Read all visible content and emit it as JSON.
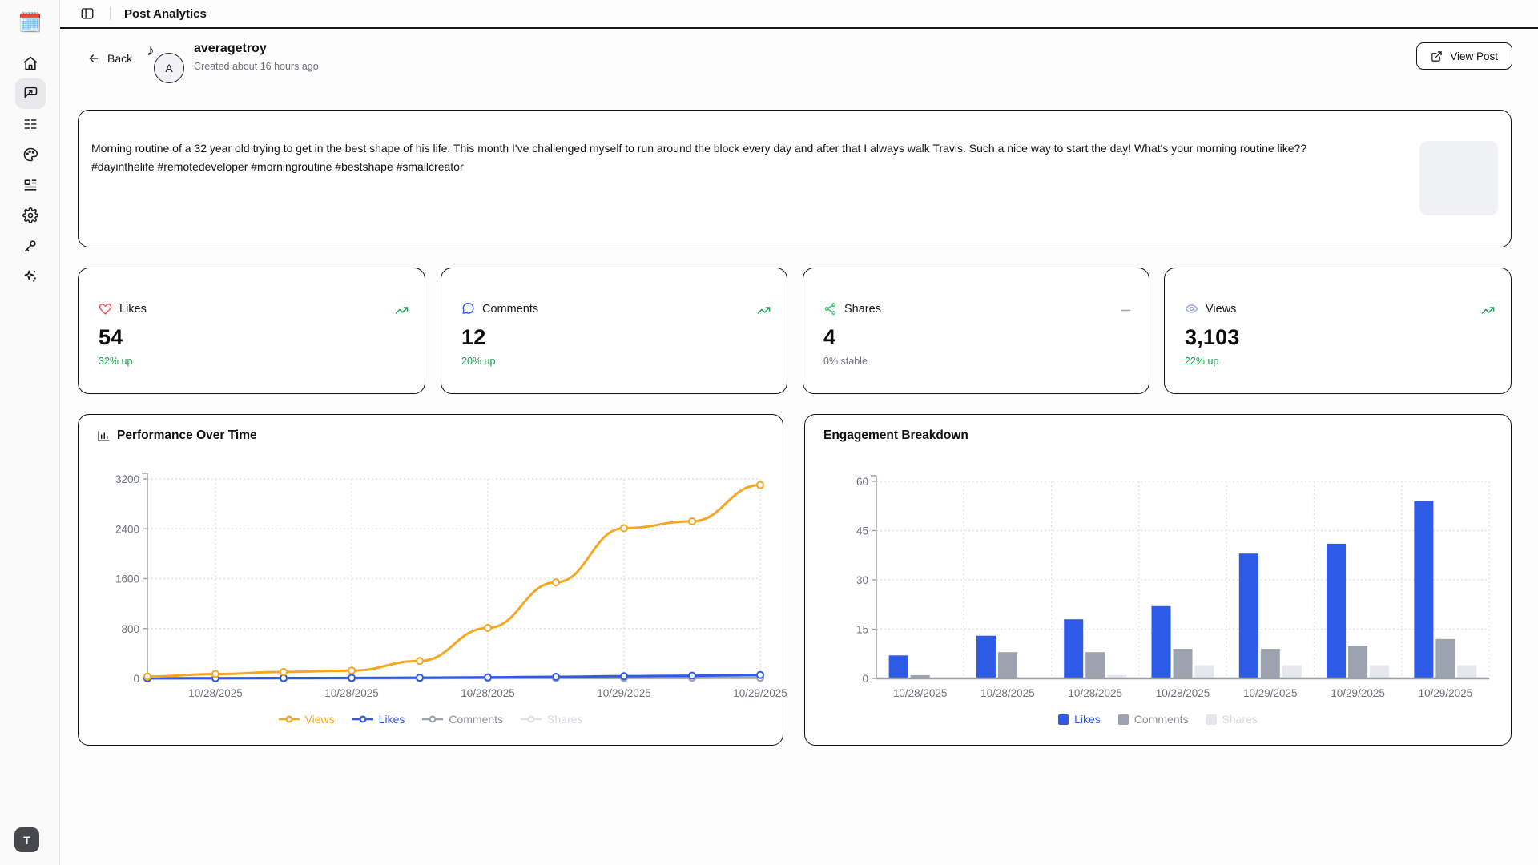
{
  "topbar": {
    "title": "Post Analytics",
    "toggle_icon": "panel-left-icon"
  },
  "sidebar": {
    "logo_icon": "calendar-emoji-logo",
    "logo": "🗓️",
    "items": [
      {
        "icon": "home-icon",
        "active": false
      },
      {
        "icon": "post-analytics-icon",
        "active": true
      },
      {
        "icon": "list-icon",
        "active": false
      },
      {
        "icon": "palette-icon",
        "active": false
      },
      {
        "icon": "layout-icon",
        "active": false
      },
      {
        "icon": "settings-gear-icon",
        "active": false
      },
      {
        "icon": "key-icon",
        "active": false
      },
      {
        "icon": "sparkles-icon",
        "active": false
      }
    ],
    "user_initial": "T"
  },
  "header": {
    "back_label": "Back",
    "avatar_initial": "A",
    "platform_badge": "tiktok-note-icon",
    "username": "averagetroy",
    "created": "Created about 16 hours ago",
    "view_post_label": "View Post"
  },
  "post": {
    "content": "Morning routine of a 32 year old trying to get in the best shape of his life. This month I've challenged myself to run around the block every day and after that I always walk Travis. Such a nice way to start the day! What's your morning routine like?? #dayinthelife #remotedeveloper #morningroutine #bestshape #smallcreator"
  },
  "stats": [
    {
      "label": "Likes",
      "value": "54",
      "change": "32% up",
      "trend": "up",
      "icon": "heart-icon",
      "icon_color": "#ef4444",
      "trend_color": "#17a34a"
    },
    {
      "label": "Comments",
      "value": "12",
      "change": "20% up",
      "trend": "up",
      "icon": "message-circle-icon",
      "icon_color": "#2d5be8",
      "trend_color": "#17a34a"
    },
    {
      "label": "Shares",
      "value": "4",
      "change": "0% stable",
      "trend": "stable",
      "icon": "share-nodes-icon",
      "icon_color": "#22c55e",
      "trend_color": "#9ca3af"
    },
    {
      "label": "Views",
      "value": "3,103",
      "change": "22% up",
      "trend": "up",
      "icon": "eye-icon",
      "icon_color": "#8ea3f0",
      "trend_color": "#17a34a"
    }
  ],
  "chart_data": [
    {
      "type": "line",
      "title": "Performance Over Time",
      "n_points": 10,
      "x_tick_labels": [
        "10/28/2025",
        "10/28/2025",
        "10/28/2025",
        "10/29/2025",
        "10/29/2025"
      ],
      "label_indices": [
        1,
        3,
        5,
        7,
        9
      ],
      "ylim": [
        0,
        3200
      ],
      "yticks": [
        0,
        800,
        1600,
        2400,
        3200
      ],
      "grid": "dashed",
      "legend_position": "bottom",
      "series": [
        {
          "name": "Views",
          "color": "#f5a623",
          "values": [
            30,
            70,
            105,
            125,
            280,
            810,
            1540,
            2410,
            2520,
            3103
          ]
        },
        {
          "name": "Likes",
          "color": "#2d5be8",
          "values": [
            2,
            4,
            6,
            8,
            12,
            18,
            26,
            36,
            44,
            54
          ]
        },
        {
          "name": "Comments",
          "color": "#9ca3af",
          "values": [
            0,
            1,
            2,
            3,
            5,
            7,
            8,
            9,
            10,
            12
          ]
        },
        {
          "name": "Shares",
          "color": "#dfe2e6",
          "values": [
            0,
            0,
            0,
            1,
            2,
            3,
            4,
            4,
            4,
            4
          ]
        }
      ]
    },
    {
      "type": "bar",
      "title": "Engagement Breakdown",
      "categories": [
        "10/28/2025",
        "10/28/2025",
        "10/28/2025",
        "10/28/2025",
        "10/29/2025",
        "10/29/2025",
        "10/29/2025"
      ],
      "ylim": [
        0,
        60
      ],
      "yticks": [
        0,
        15,
        30,
        45,
        60
      ],
      "grid": "dashed",
      "legend_position": "bottom",
      "series": [
        {
          "name": "Likes",
          "color": "#2d5be8",
          "values": [
            7,
            13,
            18,
            22,
            38,
            41,
            54
          ]
        },
        {
          "name": "Comments",
          "color": "#9ca3af",
          "values": [
            1,
            8,
            8,
            9,
            9,
            10,
            12
          ]
        },
        {
          "name": "Shares",
          "color": "#e4e7eb",
          "values": [
            0,
            0,
            1,
            4,
            4,
            4,
            4
          ]
        }
      ]
    }
  ]
}
